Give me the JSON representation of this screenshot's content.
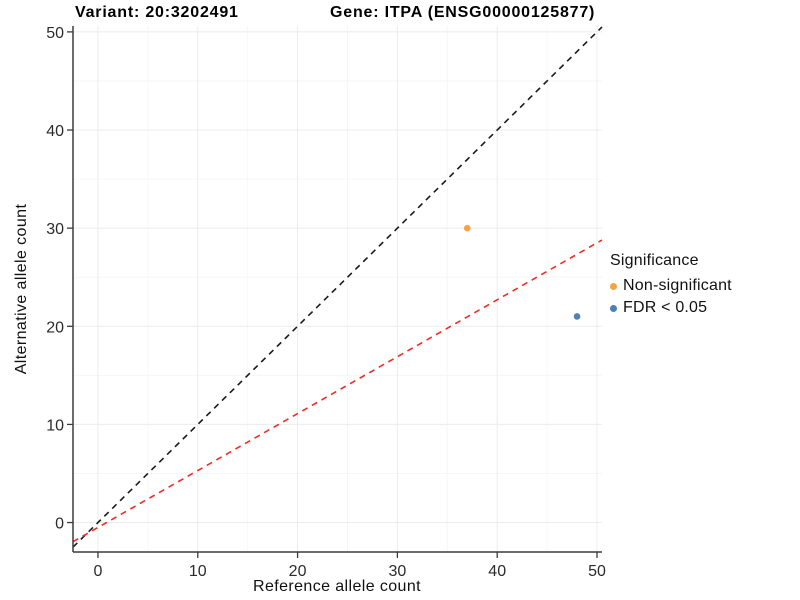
{
  "chart_data": {
    "type": "scatter",
    "title_variant": "Variant: 20:3202491",
    "title_gene": "Gene: ITPA (ENSG00000125877)",
    "xlabel": "Reference allele count",
    "ylabel": "Alternative allele count",
    "x_ticks": [
      0,
      10,
      20,
      30,
      40,
      50
    ],
    "y_ticks": [
      0,
      10,
      20,
      30,
      40,
      50
    ],
    "x_minor_ticks": [
      5,
      15,
      25,
      35,
      45
    ],
    "y_minor_ticks": [
      5,
      15,
      25,
      35,
      45
    ],
    "x_range": [
      -2.5,
      50.5
    ],
    "y_range": [
      -3.0,
      50.6
    ],
    "grid": "major+minor",
    "points": [
      {
        "x": 37,
        "y": 30,
        "series": "Non-significant"
      },
      {
        "x": 48,
        "y": 21,
        "series": "FDR < 0.05"
      }
    ],
    "lines": [
      {
        "name": "identity-line",
        "slope": 1,
        "intercept": 0,
        "color": "#1a1a1a",
        "dashed": true
      },
      {
        "name": "expected-ratio-line",
        "slope": 0.58,
        "intercept": -0.5,
        "color": "#ee2c24",
        "dashed": true
      }
    ],
    "legend": {
      "title": "Significance",
      "position": "right",
      "items": [
        {
          "label": "Non-significant",
          "color": "#f9a242"
        },
        {
          "label": "FDR < 0.05",
          "color": "#4c80b6"
        }
      ]
    },
    "style_colors": {
      "grid_major": "#ececec",
      "grid_minor": "#f6f6f6",
      "axis": "#3b3b3b",
      "tick_label": "#2b2b2b",
      "panel_background": "#ffffff"
    }
  }
}
